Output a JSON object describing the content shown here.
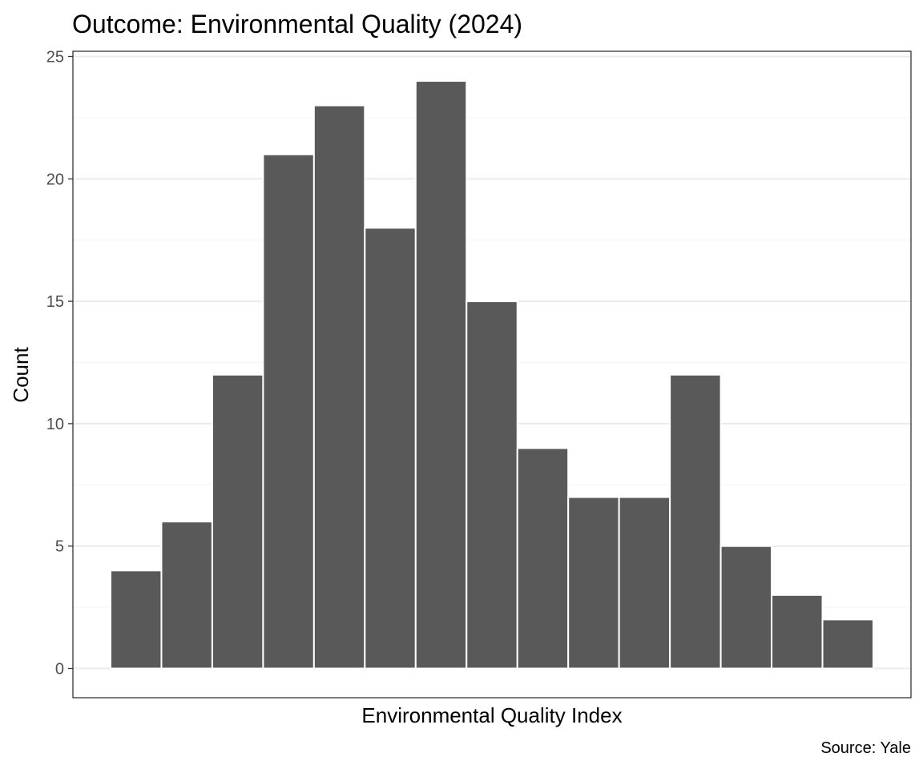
{
  "chart_data": {
    "type": "bar",
    "title": "Outcome: Environmental Quality (2024)",
    "xlabel": "Environmental Quality Index",
    "ylabel": "Count",
    "caption": "Source: Yale",
    "values": [
      4,
      6,
      12,
      21,
      23,
      18,
      24,
      15,
      9,
      7,
      7,
      12,
      5,
      3,
      2
    ],
    "ylim": [
      0,
      25
    ],
    "yticks": [
      0,
      5,
      10,
      15,
      20,
      25
    ],
    "ytick_labels": [
      "0",
      "5",
      "10",
      "15",
      "20",
      "25"
    ],
    "x_tick_labels_visible": false,
    "grid": true,
    "legend": "none",
    "colors": {
      "bar_fill": "#595959",
      "bar_stroke": "#ffffff",
      "panel_border": "#333333",
      "grid_major": "#ebebeb",
      "grid_minor": "#f5f5f5",
      "tick_text": "#4d4d4d"
    }
  }
}
